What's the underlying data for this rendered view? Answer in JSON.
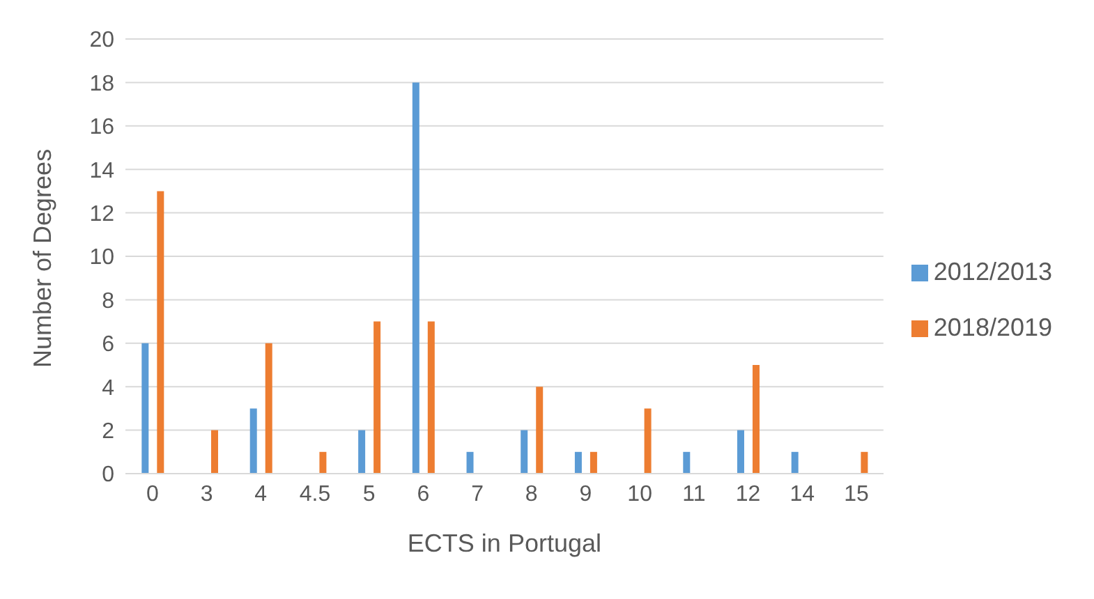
{
  "chart_data": {
    "type": "bar",
    "xlabel": "ECTS in Portugal",
    "ylabel": "Number of Degrees",
    "categories": [
      "0",
      "3",
      "4",
      "4.5",
      "5",
      "6",
      "7",
      "8",
      "9",
      "10",
      "11",
      "12",
      "14",
      "15"
    ],
    "series": [
      {
        "name": "2012/2013",
        "color": "#5b9bd5",
        "values": [
          6,
          0,
          3,
          0,
          2,
          18,
          1,
          2,
          1,
          0,
          1,
          2,
          1,
          0
        ]
      },
      {
        "name": "2018/2019",
        "color": "#ed7d31",
        "values": [
          13,
          2,
          6,
          1,
          7,
          7,
          0,
          4,
          1,
          3,
          0,
          5,
          0,
          1
        ]
      }
    ],
    "ylim": [
      0,
      20
    ],
    "yticks": [
      0,
      2,
      4,
      6,
      8,
      10,
      12,
      14,
      16,
      18,
      20
    ],
    "grid": "y",
    "legend": "right"
  }
}
